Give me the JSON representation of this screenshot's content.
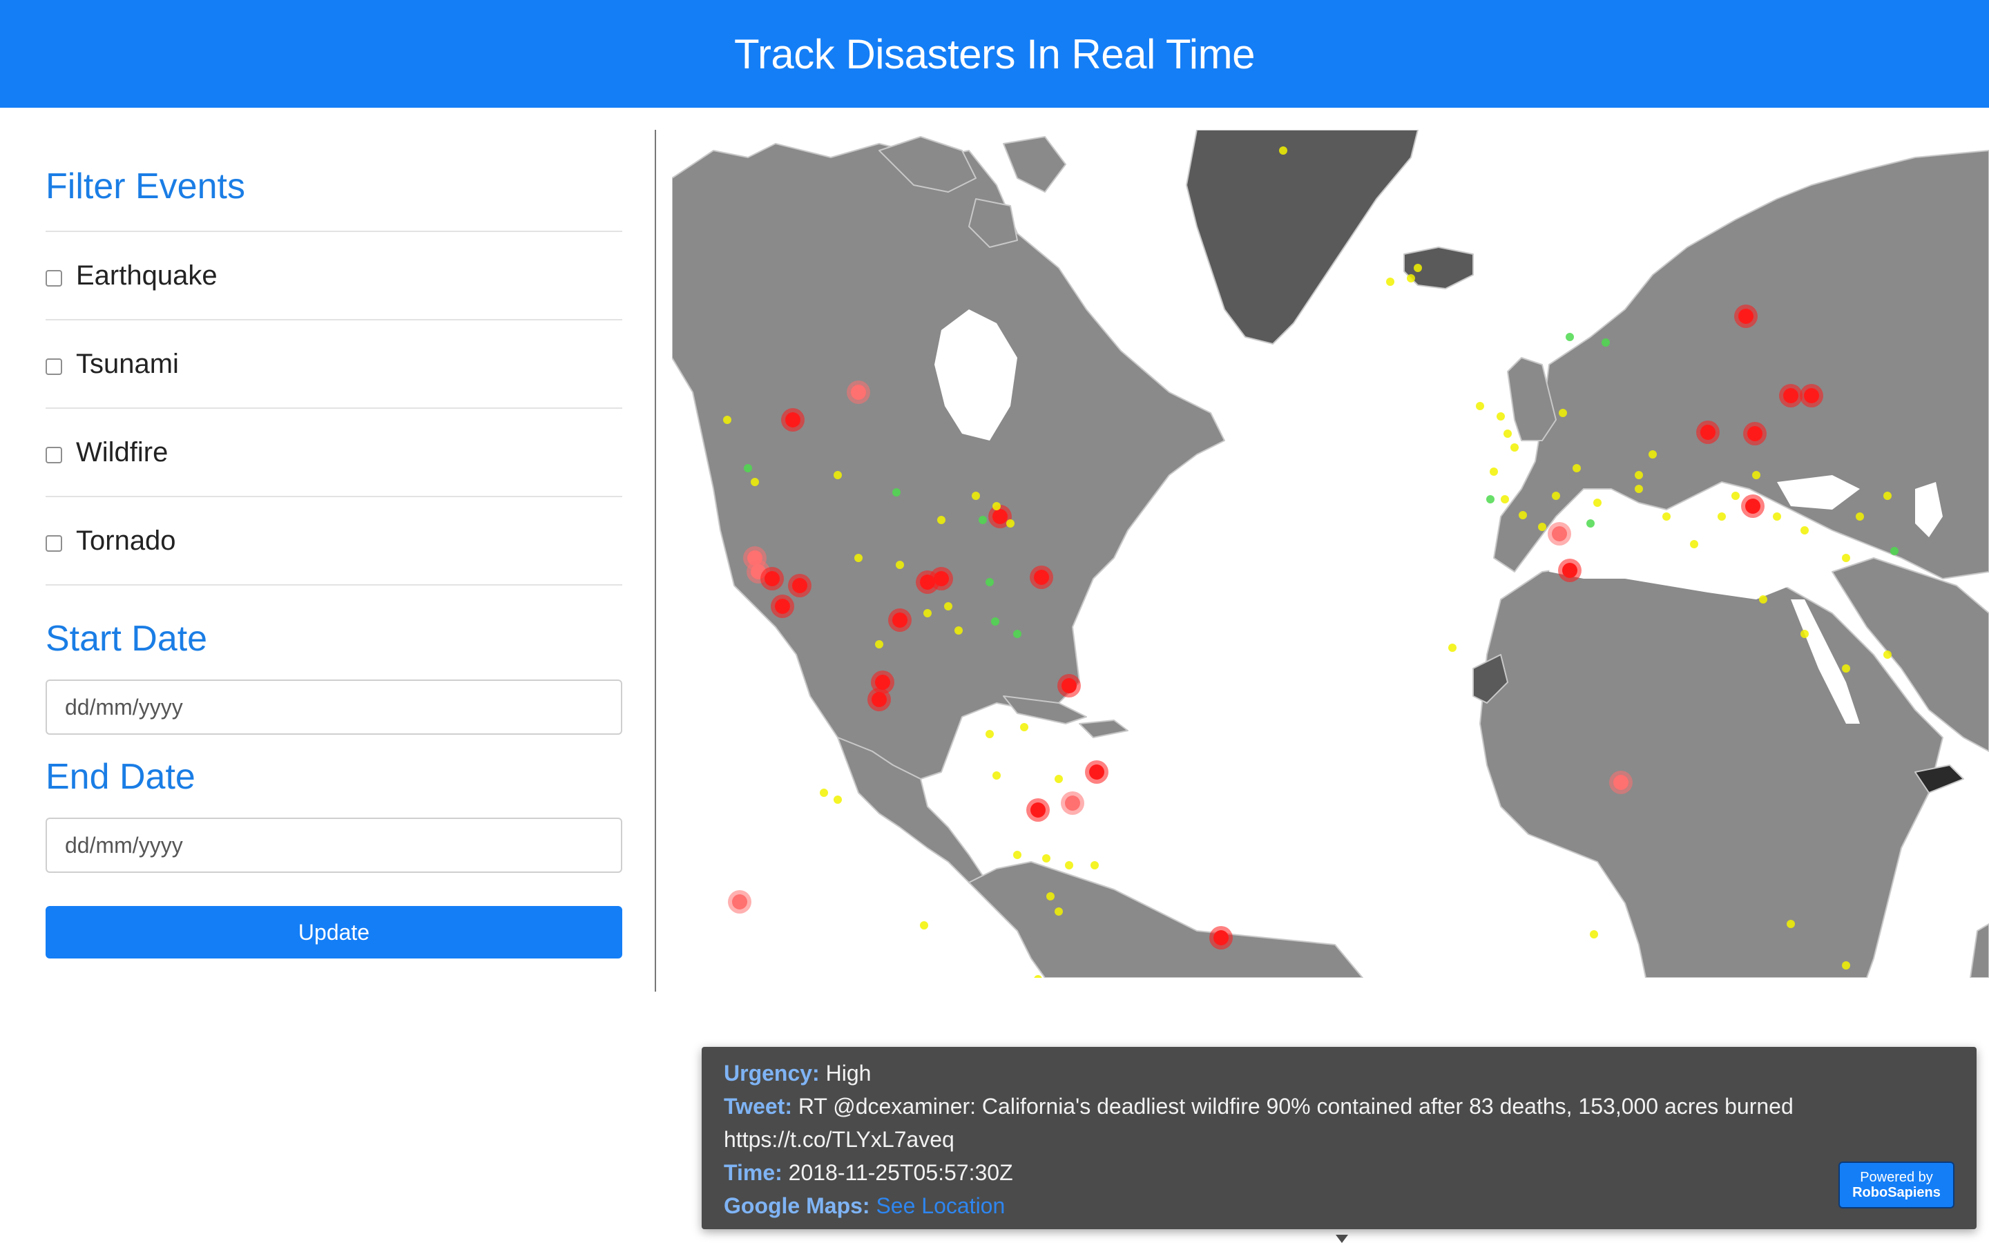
{
  "header": {
    "title": "Track Disasters In Real Time"
  },
  "sidebar": {
    "filter_title": "Filter Events",
    "filters": [
      {
        "label": "Earthquake",
        "checked": false
      },
      {
        "label": "Tsunami",
        "checked": false
      },
      {
        "label": "Wildfire",
        "checked": false
      },
      {
        "label": "Tornado",
        "checked": false
      }
    ],
    "start_title": "Start Date",
    "start_placeholder": "dd/mm/yyyy",
    "end_title": "End Date",
    "end_placeholder": "dd/mm/yyyy",
    "update_label": "Update"
  },
  "map": {
    "colors": {
      "land": "#8a8a8a",
      "land_dark": "#5a5a5a",
      "border": "#c8c8c8",
      "high": "#ff1a1a",
      "medium": "#ff7070",
      "low": "#f2f200",
      "green": "#4dd94d"
    }
  },
  "tooltip": {
    "urgency_key": "Urgency:",
    "urgency_value": "High",
    "tweet_key": "Tweet:",
    "tweet_value": "RT @dcexaminer: California's deadliest wildfire 90% contained after 83 deaths, 153,000 acres burned",
    "tweet_url": "https://t.co/TLYxL7aveq",
    "time_key": "Time:",
    "time_value": "2018-11-25T05:57:30Z",
    "maps_key": "Google Maps:",
    "maps_link": "See Location",
    "powered_line1": "Powered by",
    "powered_line2": "RoboSapiens"
  }
}
